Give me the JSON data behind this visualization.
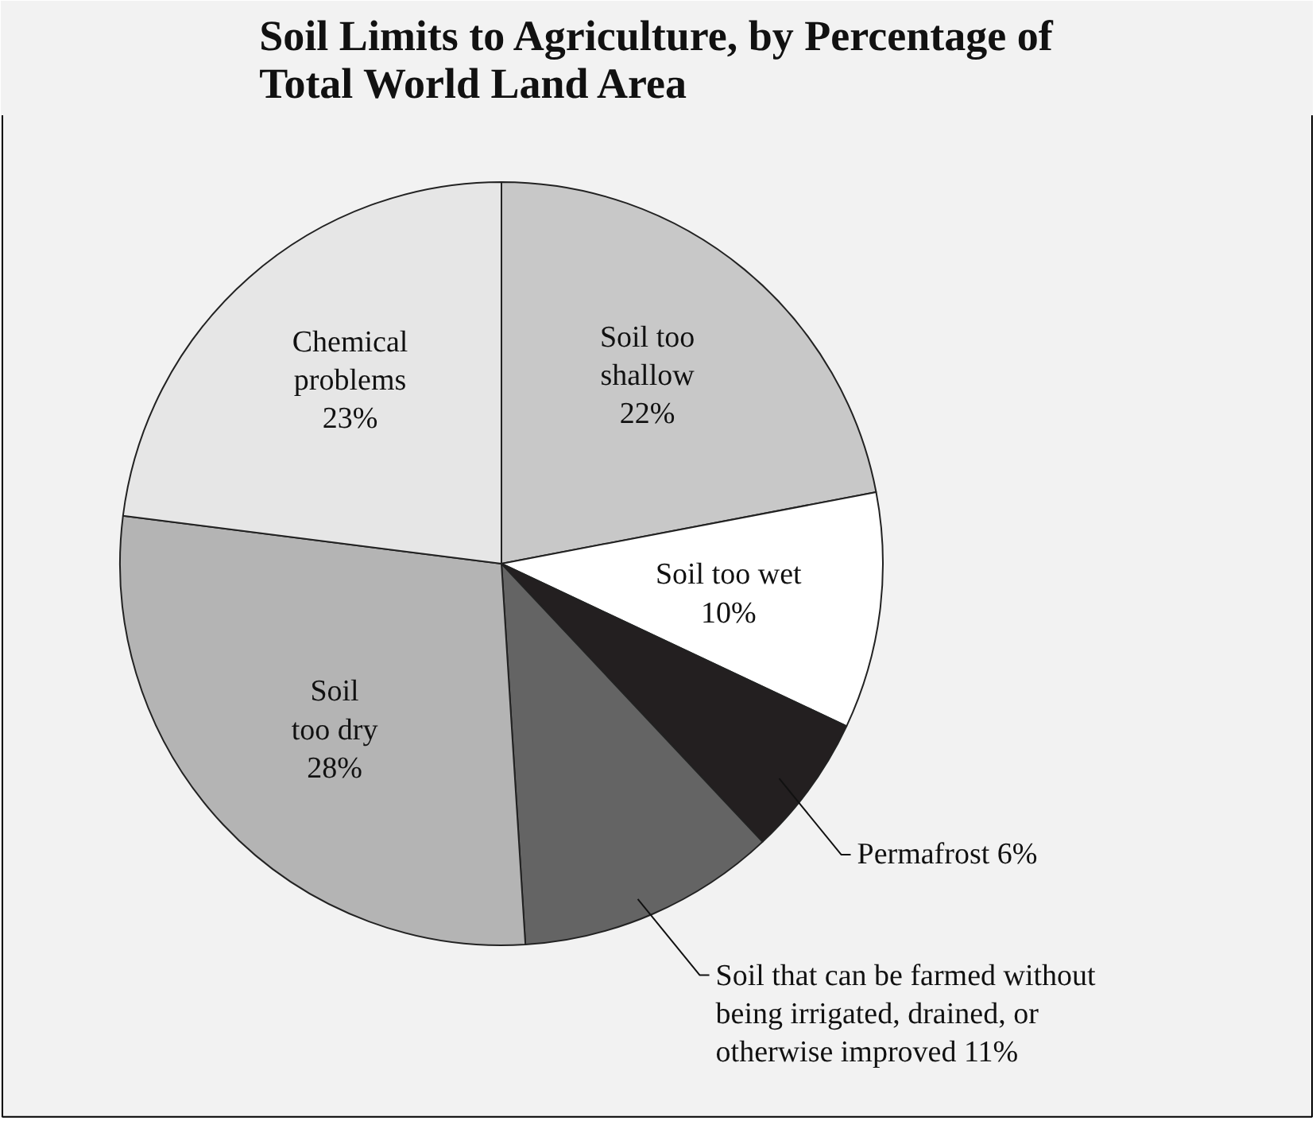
{
  "chart_data": {
    "type": "pie",
    "title": "Soil Limits to Agriculture, by Percentage of\nTotal World Land Area",
    "categories": [
      "Soil too\nshallow",
      "Soil too wet",
      "Permafrost",
      "Soil that can be farmed without\nbeing irrigated, drained, or\notherwise improved",
      "Soil\ntoo dry",
      "Chemical\nproblems"
    ],
    "values": [
      22,
      10,
      6,
      11,
      28,
      23
    ],
    "value_labels": [
      "22%",
      "10%",
      "6%",
      "11%",
      "28%",
      "23%"
    ],
    "colors": [
      "#c8c8c8",
      "#ffffff",
      "#231f20",
      "#646464",
      "#b4b4b4",
      "#e6e6e6"
    ]
  }
}
